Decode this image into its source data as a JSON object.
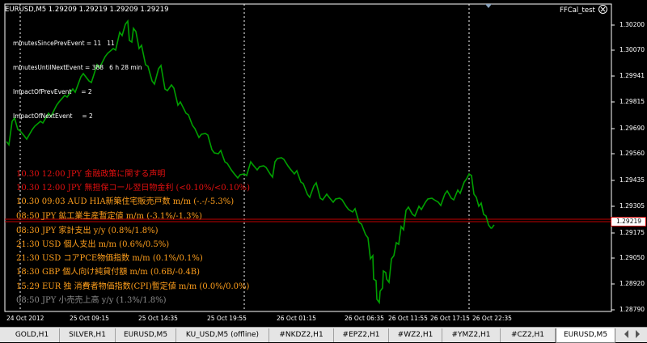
{
  "chart": {
    "title": "EURUSD,M5  1.29209 1.29219 1.29209 1.29219",
    "indicator_name": "FFCal_test",
    "info_lines": [
      "minutesSincePrevEvent = 11   11",
      "minutesUntilNextEvent = 388   6 h 28 min",
      "ImpactOfPrevEvent     = 2",
      "ImpactOfNextEvent     = 2"
    ],
    "events": [
      {
        "text": "10.30 12:00 JPY 金融政策に関する声明",
        "color": "#e41010"
      },
      {
        "text": "10.30 12:00 JPY 無担保コール翌日物金利 (<0.10%/<0.10%)",
        "color": "#e41010"
      },
      {
        "text": "10.30 09:03 AUD HIA新築住宅販売戸数 m/m (-.-/-5.3%)",
        "color": "#ff9f1c"
      },
      {
        "text": "08:50 JPY 鉱工業生産暫定値 m/m (-3.1%/-1.3%)",
        "color": "#ff9f1c"
      },
      {
        "text": "08:30 JPY 家計支出 y/y (0.8%/1.8%)",
        "color": "#ff9f1c"
      },
      {
        "text": "21:30 USD 個人支出 m/m (0.6%/0.5%)",
        "color": "#ff9f1c"
      },
      {
        "text": "21:30 USD コアPCE物価指数 m/m (0.1%/0.1%)",
        "color": "#ff9f1c"
      },
      {
        "text": "18:30 GBP 個人向け純貸付額 m/m (0.6B/-0.4B)",
        "color": "#ff9f1c"
      },
      {
        "text": "15:29 EUR 独 消費者物価指数(CPI)暫定値 m/m (0.0%/0.0%)",
        "color": "#ff9f1c"
      },
      {
        "text": "08:50 JPY 小売売上高 y/y (1.3%/1.8%)",
        "color": "#8c8c8c"
      }
    ],
    "price_labels": [
      "1.30200",
      "1.30070",
      "1.29941",
      "1.29815",
      "1.29690",
      "1.29560",
      "1.29435",
      "1.29305",
      "1.29175",
      "1.29050",
      "1.28920",
      "1.28790"
    ],
    "current_price": "1.29219",
    "time_labels": [
      "24 Oct 2012",
      "25 Oct 09:15",
      "25 Oct 14:35",
      "25 Oct 19:55",
      "26 Oct 01:15",
      "26 Oct 06:35",
      "26 Oct 11:55",
      "26 Oct 17:15",
      "26 Oct 22:35"
    ],
    "colors": {
      "candles": "#00a000",
      "grid": "#ffffff",
      "bid_line": "#c00000",
      "axis": "#ffffff",
      "background": "#000000"
    }
  },
  "tabs": [
    {
      "label": "GOLD,H1",
      "active": false
    },
    {
      "label": "SILVER,H1",
      "active": false
    },
    {
      "label": "EURUSD,M5",
      "active": false
    },
    {
      "label": "KU_USD,M5 (offline)",
      "active": false
    },
    {
      "label": "#NKDZ2,H1",
      "active": false
    },
    {
      "label": "#EPZ2,H1",
      "active": false
    },
    {
      "label": "#WZ2,H1",
      "active": false
    },
    {
      "label": "#YMZ2,H1",
      "active": false
    },
    {
      "label": "#CZ2,H1",
      "active": false
    },
    {
      "label": "EURUSD,M5",
      "active": true
    }
  ]
}
